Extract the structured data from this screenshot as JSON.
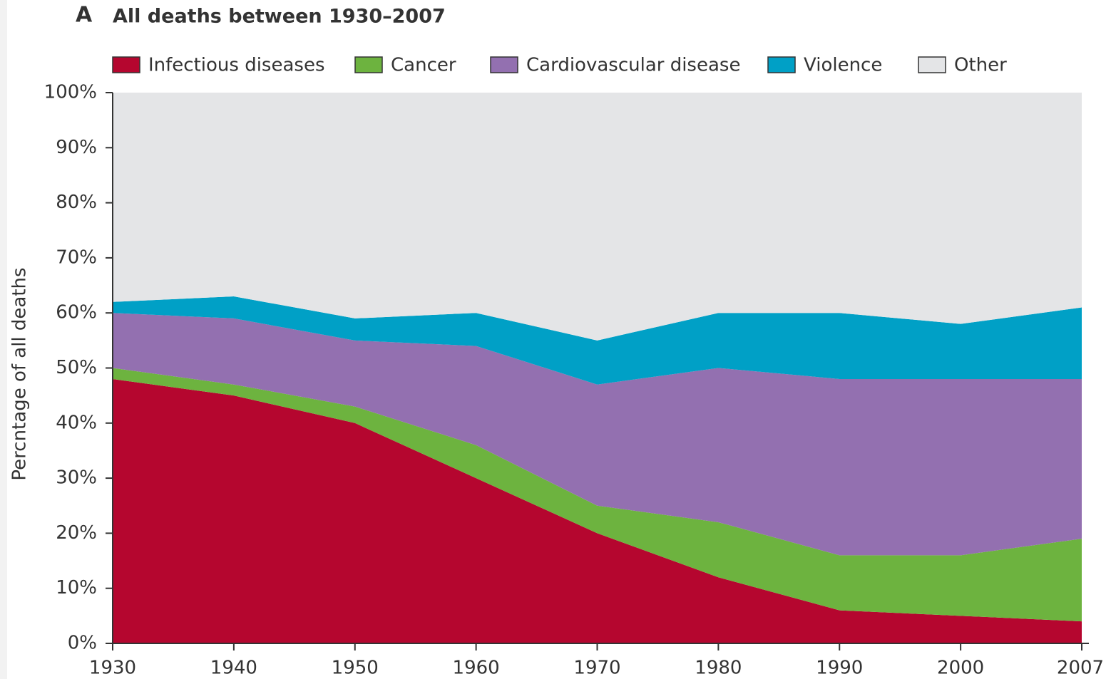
{
  "chart_data": {
    "type": "stacked_area",
    "panel_label": "A",
    "title": "All deaths between 1930–2007",
    "y_label": "Percntage of all deaths",
    "categories": [
      "1930",
      "1940",
      "1950",
      "1960",
      "1970",
      "1980",
      "1990",
      "2000",
      "2007"
    ],
    "series": [
      {
        "name": "Infectious diseases",
        "color": "#b5062f",
        "values": [
          48,
          45,
          40,
          30,
          20,
          12,
          6,
          5,
          4
        ]
      },
      {
        "name": "Cancer",
        "color": "#6db33f",
        "values": [
          2,
          2,
          3,
          6,
          5,
          10,
          10,
          11,
          15
        ]
      },
      {
        "name": "Cardiovascular disease",
        "color": "#9370b0",
        "values": [
          10,
          12,
          12,
          18,
          22,
          28,
          32,
          32,
          29
        ]
      },
      {
        "name": "Violence",
        "color": "#00a0c6",
        "values": [
          2,
          4,
          4,
          6,
          8,
          10,
          12,
          10,
          13
        ]
      },
      {
        "name": "Other",
        "color": "#e4e5e7",
        "values": [
          38,
          37,
          41,
          40,
          45,
          40,
          40,
          42,
          39
        ]
      }
    ],
    "ylim": [
      0,
      100
    ],
    "yticks": [
      {
        "value": 0,
        "label": "0%"
      },
      {
        "value": 10,
        "label": "10%"
      },
      {
        "value": 20,
        "label": "20%"
      },
      {
        "value": 30,
        "label": "30%"
      },
      {
        "value": 40,
        "label": "40%"
      },
      {
        "value": 50,
        "label": "50%"
      },
      {
        "value": 60,
        "label": "60%"
      },
      {
        "value": 70,
        "label": "70%"
      },
      {
        "value": 80,
        "label": "80%"
      },
      {
        "value": 90,
        "label": "90%"
      },
      {
        "value": 100,
        "label": "100%"
      }
    ],
    "legend": "top"
  }
}
